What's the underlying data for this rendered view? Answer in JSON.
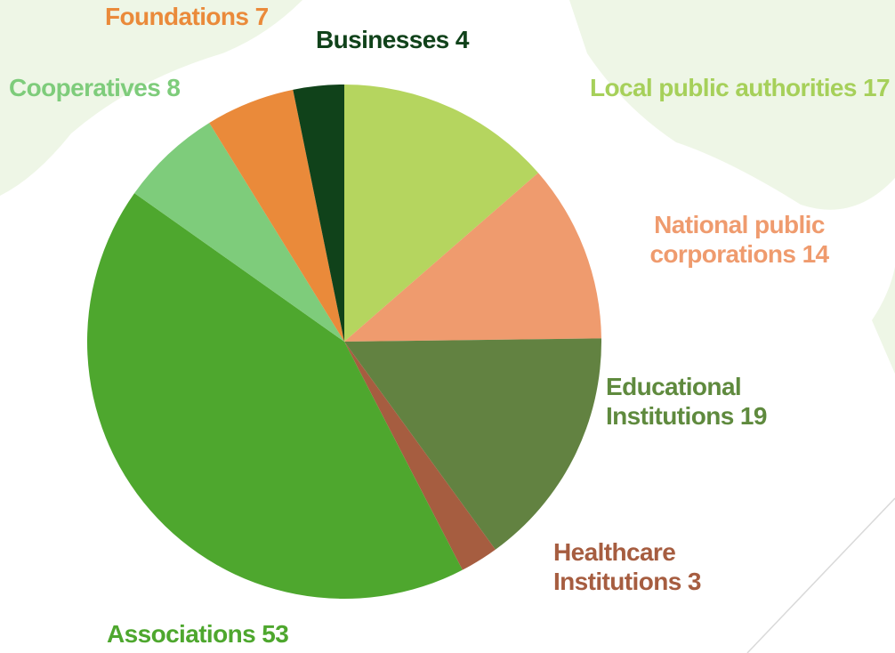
{
  "chart_data": {
    "type": "pie",
    "categories": [
      "Local public authorities",
      "National public corporations",
      "Educational Institutions",
      "Healthcare Institutions",
      "Associations",
      "Cooperatives",
      "Foundations",
      "Businesses"
    ],
    "values": [
      17,
      14,
      19,
      3,
      53,
      8,
      7,
      4
    ],
    "colors": [
      "#b5d55f",
      "#ef9b6e",
      "#628241",
      "#a65d40",
      "#4ea72e",
      "#7ecc7b",
      "#ea8a3a",
      "#10421a"
    ],
    "label_colors": [
      "#a6d05a",
      "#ef9b6e",
      "#5f8a3e",
      "#a65d40",
      "#4ea72e",
      "#7ecc7b",
      "#ea8a3a",
      "#10421a"
    ]
  }
}
